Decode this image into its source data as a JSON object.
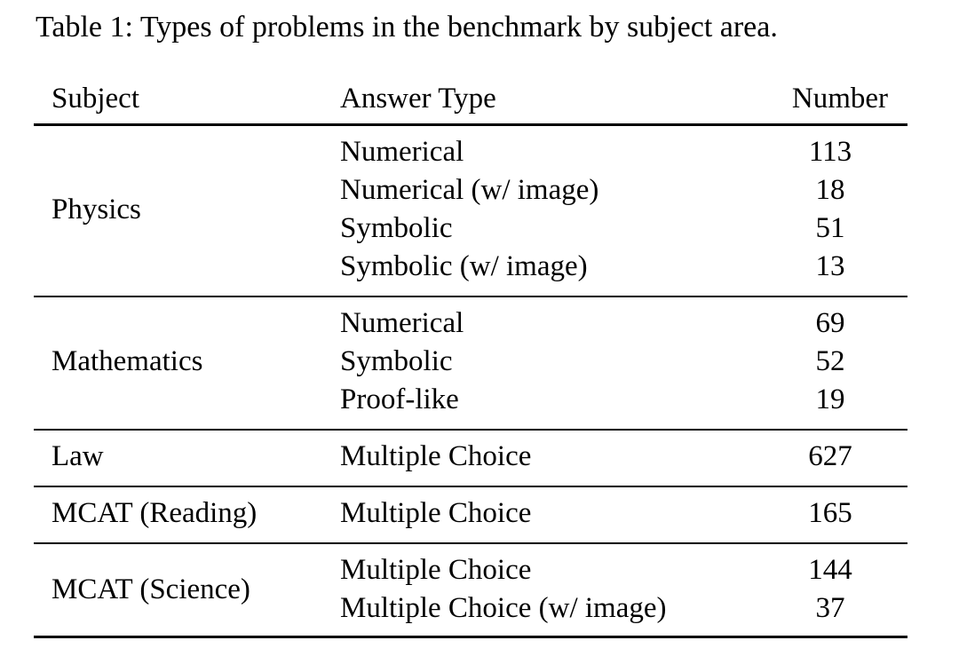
{
  "caption": "Table 1: Types of problems in the benchmark by subject area.",
  "headers": {
    "subject": "Subject",
    "answer_type": "Answer Type",
    "number": "Number"
  },
  "groups": [
    {
      "subject": "Physics",
      "rows": [
        {
          "answer_type": "Numerical",
          "number": "113"
        },
        {
          "answer_type": "Numerical (w/ image)",
          "number": "18"
        },
        {
          "answer_type": "Symbolic",
          "number": "51"
        },
        {
          "answer_type": "Symbolic (w/ image)",
          "number": "13"
        }
      ]
    },
    {
      "subject": "Mathematics",
      "rows": [
        {
          "answer_type": "Numerical",
          "number": "69"
        },
        {
          "answer_type": "Symbolic",
          "number": "52"
        },
        {
          "answer_type": "Proof-like",
          "number": "19"
        }
      ]
    },
    {
      "subject": "Law",
      "rows": [
        {
          "answer_type": "Multiple Choice",
          "number": "627"
        }
      ]
    },
    {
      "subject": "MCAT (Reading)",
      "rows": [
        {
          "answer_type": "Multiple Choice",
          "number": "165"
        }
      ]
    },
    {
      "subject": "MCAT (Science)",
      "rows": [
        {
          "answer_type": "Multiple Choice",
          "number": "144"
        },
        {
          "answer_type": "Multiple Choice (w/ image)",
          "number": "37"
        }
      ]
    }
  ]
}
